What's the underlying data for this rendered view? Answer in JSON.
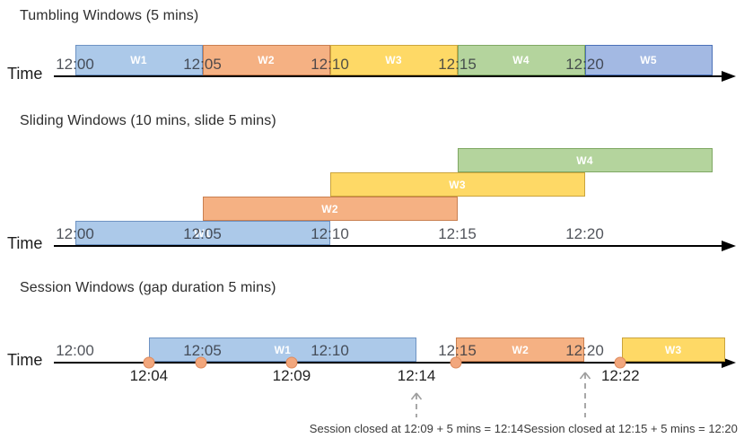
{
  "colors": {
    "blue": {
      "fill": "#ACC9E9",
      "border": "#6E93C3"
    },
    "orange": {
      "fill": "#F5B183",
      "border": "#C97F50"
    },
    "yellow": {
      "fill": "#FED966",
      "border": "#CBA43C"
    },
    "green": {
      "fill": "#B4D49D",
      "border": "#7FA863"
    },
    "indigo": {
      "fill": "#A3B9E3",
      "border": "#4A70B8"
    },
    "event_dot": {
      "fill": "#F2A77D",
      "border": "#DE8A5C"
    },
    "timeline": "#000000",
    "annotation_arrow": "#9E9E9E"
  },
  "sections": [
    {
      "id": "tumbling",
      "title": "Tumbling Windows (5 mins)",
      "time_label": "Time",
      "ticks": [
        {
          "label": "12:00",
          "min": 0
        },
        {
          "label": "12:05",
          "min": 5
        },
        {
          "label": "12:10",
          "min": 10
        },
        {
          "label": "12:15",
          "min": 15
        },
        {
          "label": "12:20",
          "min": 20
        }
      ],
      "windows": [
        {
          "label": "W1",
          "start_min": 0,
          "end_min": 5,
          "row": 0,
          "color": "blue"
        },
        {
          "label": "W2",
          "start_min": 5,
          "end_min": 10,
          "row": 0,
          "color": "orange"
        },
        {
          "label": "W3",
          "start_min": 10,
          "end_min": 15,
          "row": 0,
          "color": "yellow"
        },
        {
          "label": "W4",
          "start_min": 15,
          "end_min": 20,
          "row": 0,
          "color": "green"
        },
        {
          "label": "W5",
          "start_min": 20,
          "end_min": 25,
          "row": 0,
          "color": "indigo"
        }
      ]
    },
    {
      "id": "sliding",
      "title": "Sliding Windows (10 mins, slide 5 mins)",
      "time_label": "Time",
      "ticks": [
        {
          "label": "12:00",
          "min": 0
        },
        {
          "label": "12:05",
          "min": 5
        },
        {
          "label": "12:10",
          "min": 10
        },
        {
          "label": "12:15",
          "min": 15
        },
        {
          "label": "12:20",
          "min": 20
        }
      ],
      "windows": [
        {
          "label": "W1",
          "start_min": 0,
          "end_min": 10,
          "row": 0,
          "color": "blue"
        },
        {
          "label": "W2",
          "start_min": 5,
          "end_min": 15,
          "row": 1,
          "color": "orange"
        },
        {
          "label": "W3",
          "start_min": 10,
          "end_min": 20,
          "row": 2,
          "color": "yellow"
        },
        {
          "label": "W4",
          "start_min": 15,
          "end_min": 25,
          "row": 3,
          "color": "green"
        }
      ]
    },
    {
      "id": "session",
      "title": "Session Windows (gap duration 5 mins)",
      "time_label": "Time",
      "ticks": [
        {
          "label": "12:00",
          "min": 0
        },
        {
          "label": "12:05",
          "min": 5
        },
        {
          "label": "12:10",
          "min": 10
        },
        {
          "label": "12:15",
          "min": 15
        },
        {
          "label": "12:20",
          "min": 20
        }
      ],
      "windows": [
        {
          "label": "W1",
          "start_min": 2.9,
          "end_min": 13.4,
          "row": 0,
          "color": "blue"
        },
        {
          "label": "W2",
          "start_min": 14.95,
          "end_min": 20,
          "row": 0,
          "color": "orange"
        },
        {
          "label": "W3",
          "start_min": 21.45,
          "end_min": 25.5,
          "row": 0,
          "color": "yellow"
        }
      ],
      "events": [
        {
          "min": 2.9,
          "dot": true,
          "label": "12:04"
        },
        {
          "min": 4.95,
          "dot": true,
          "label": ""
        },
        {
          "min": 8.5,
          "dot": true,
          "label": "12:09"
        },
        {
          "min": 13.4,
          "dot": false,
          "label": "12:14"
        },
        {
          "min": 14.95,
          "dot": true,
          "label": ""
        },
        {
          "min": 21.4,
          "dot": true,
          "label": "12:22"
        }
      ],
      "annotations": [
        {
          "text": "Session closed at 12:09 + 5 mins = 12:14",
          "arrow_min": 13.4,
          "text_min": 13.4,
          "arrow_size": "short"
        },
        {
          "text": "Session closed at 12:15 + 5 mins = 12:20",
          "arrow_min": 20,
          "text_min": 21.8,
          "arrow_size": "tall"
        }
      ]
    }
  ]
}
